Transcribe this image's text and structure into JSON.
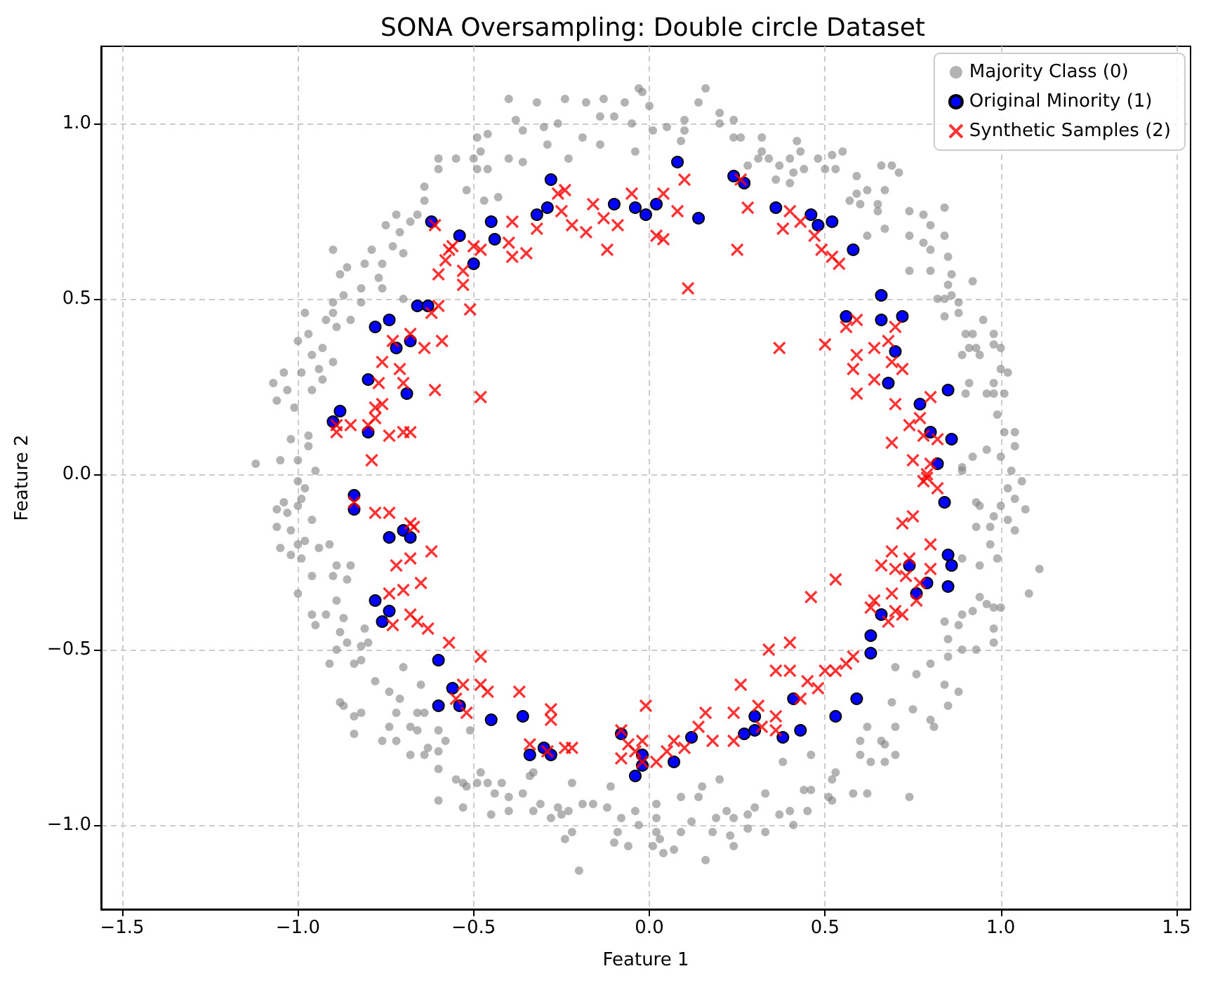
{
  "chart_data": {
    "type": "scatter",
    "title": "SONA Oversampling: Double circle Dataset",
    "xlabel": "Feature 1",
    "ylabel": "Feature 2",
    "xlim": [
      -1.56,
      1.54
    ],
    "ylim": [
      -1.24,
      1.22
    ],
    "xticks": [
      {
        "value": -1.5,
        "label": "−1.5"
      },
      {
        "value": -1.0,
        "label": "−1.0"
      },
      {
        "value": -0.5,
        "label": "−0.5"
      },
      {
        "value": 0,
        "label": "0.0"
      },
      0.5,
      {
        "value": 1.0,
        "label": "1.0"
      },
      1.5
    ],
    "yticks": [
      {
        "value": -1.0,
        "label": "−1.0"
      },
      {
        "value": -0.5,
        "label": "−0.5"
      },
      {
        "value": 0,
        "label": "0.0"
      },
      0.5,
      {
        "value": 1.0,
        "label": "1.0"
      }
    ],
    "grid": true,
    "legend": "top right",
    "series": [
      {
        "name": "Majority Class (0)",
        "color": "#808080",
        "marker": "circle",
        "x": [
          -0.4,
          -0.32,
          -0.24,
          -0.18,
          -0.13,
          -0.07,
          -0.03,
          -0.38,
          -0.36,
          -0.3,
          -0.26,
          -0.29,
          -0.19,
          -0.14,
          -0.1,
          -0.05,
          -0.14,
          -0.04,
          -0.23,
          -0.4,
          -0.36,
          -0.46,
          -0.49,
          -0.48,
          -0.5,
          -0.6,
          -0.55,
          -0.6,
          -0.49,
          -0.46,
          -0.64,
          -0.52,
          -0.47,
          -0.43,
          -0.64,
          -0.66,
          -0.72,
          -0.71,
          -0.75,
          -0.68,
          -0.73,
          -0.7,
          -0.79,
          -0.76,
          -0.81,
          -0.9,
          -0.86,
          -0.88,
          -0.77,
          -0.82,
          -0.87,
          -0.76,
          -0.7,
          -0.9,
          -0.82,
          -0.98,
          -0.9,
          -0.85,
          -0.92,
          -0.89,
          -0.97,
          -1.0,
          -0.93,
          -0.96,
          -0.9,
          -0.99,
          -0.94,
          -1.04,
          -1.07,
          -0.93,
          -0.96,
          -1.03,
          -1.06,
          -1.01,
          -1.02,
          -0.97,
          -0.97,
          -1.12,
          -1.05,
          -1.0,
          -0.95,
          -0.02,
          0.0,
          0.01,
          0.05,
          0.09,
          0.1,
          0.1,
          0.16,
          0.14,
          0.2,
          0.2,
          0.24,
          0.24,
          0.26,
          0.32,
          0.32,
          0.28,
          0.31,
          0.34,
          0.37,
          0.36,
          0.4,
          0.42,
          0.43,
          0.41,
          0.44,
          0.4,
          0.48,
          0.52,
          0.55,
          0.5,
          0.53,
          0.59,
          0.57,
          0.59,
          0.62,
          0.6,
          0.65,
          0.66,
          0.69,
          0.71,
          0.67,
          0.65,
          0.62,
          0.67,
          0.74,
          0.78,
          0.8,
          0.84,
          0.74,
          0.78,
          0.8,
          0.84,
          0.85,
          0.74,
          0.8,
          0.86,
          0.92,
          0.85,
          0.86,
          0.88,
          0.82,
          0.84,
          0.88,
          0.84,
          0.9,
          0.92,
          0.95,
          0.91,
          0.89,
          0.93,
          0.98,
          0.98,
          1.0,
          0.94,
          1.0,
          1.02,
          0.98,
          0.91,
          0.96,
          0.98,
          0.9,
          1.01,
          0.99,
          1.01,
          1.04,
          0.96,
          1.0,
          0.92,
          1.04,
          0.89,
          1.06,
          1.03,
          -1.0,
          -0.98,
          -1.06,
          -1.04,
          -1.03,
          -1.0,
          -0.99,
          -0.96,
          -1.06,
          -1.02,
          -1.05,
          -1.0,
          -0.98,
          -0.94,
          -0.91,
          -1.02,
          -0.99,
          -0.96,
          -0.9,
          -0.89,
          -0.85,
          -0.86,
          -1.0,
          -0.89,
          -0.96,
          -0.92,
          -0.95,
          -0.87,
          -0.88,
          -0.81,
          -0.89,
          -0.86,
          -0.91,
          -0.84,
          -0.82,
          -0.8,
          -0.82,
          -0.7,
          -0.78,
          -0.74,
          -0.65,
          -0.71,
          -0.88,
          -0.87,
          -0.82,
          -0.84,
          -0.72,
          -0.66,
          -0.64,
          -0.74,
          -0.84,
          -0.68,
          -0.66,
          -0.76,
          -0.72,
          -0.63,
          -0.6,
          -0.58,
          -0.6,
          -0.64,
          -0.6,
          -0.68,
          -0.51,
          -0.55,
          -0.53,
          -0.52,
          -0.49,
          -0.48,
          -0.46,
          -0.44,
          -0.42,
          -0.6,
          -0.53,
          -0.45,
          -0.4,
          -0.4,
          -0.36,
          -0.34,
          -0.33,
          -0.31,
          -0.33,
          -0.28,
          -0.26,
          -0.23,
          -0.25,
          -0.24,
          -0.22,
          -0.22,
          -0.19,
          -0.16,
          -0.12,
          -0.11,
          -0.08,
          -0.09,
          -0.1,
          -0.06,
          -0.04,
          -0.03,
          -0.2,
          0.89,
          0.93,
          0.94,
          1.0,
          1.04,
          1.07,
          1.02,
          0.98,
          1.02,
          0.93,
          0.97,
          1.04,
          0.97,
          0.89,
          0.94,
          0.99,
          1.11,
          1.08,
          0.94,
          0.96,
          0.98,
          1.0,
          0.89,
          0.92,
          0.88,
          0.84,
          0.85,
          0.85,
          0.89,
          0.93,
          0.98,
          0.98,
          0.8,
          0.76,
          0.84,
          0.88,
          0.85,
          0.8,
          0.81,
          0.75,
          0.7,
          0.69,
          0.7,
          0.62,
          0.67,
          0.7,
          0.66,
          0.6,
          0.6,
          0.63,
          0.67,
          0.38,
          0.46,
          0.53,
          0.52,
          0.44,
          0.46,
          0.51,
          0.52,
          0.58,
          0.62,
          0.74,
          0.33,
          0.3,
          0.28,
          0.37,
          0.4,
          0.45,
          0.41,
          0.28,
          0.33,
          0.24,
          0.22,
          0.23,
          0.24,
          0.19,
          0.18,
          0.15,
          0.14,
          0.2,
          0.12,
          0.09,
          0.09,
          0.04,
          0.07,
          0.03,
          0.02,
          0.02,
          0.02,
          0.16,
          0.01
        ],
        "values": [
          1.07,
          1.06,
          1.07,
          1.06,
          1.07,
          1.06,
          1.1,
          1.01,
          0.98,
          0.99,
          1.0,
          0.94,
          0.96,
          1.02,
          1.02,
          1.0,
          0.94,
          0.92,
          0.9,
          0.9,
          0.89,
          0.97,
          0.96,
          0.92,
          0.9,
          0.9,
          0.9,
          0.87,
          0.87,
          0.87,
          0.82,
          0.81,
          0.78,
          0.79,
          0.78,
          0.74,
          0.74,
          0.69,
          0.71,
          0.72,
          0.65,
          0.63,
          0.64,
          0.6,
          0.6,
          0.64,
          0.59,
          0.57,
          0.56,
          0.53,
          0.51,
          0.53,
          0.5,
          0.49,
          0.49,
          0.46,
          0.46,
          0.44,
          0.44,
          0.42,
          0.4,
          0.38,
          0.36,
          0.34,
          0.32,
          0.29,
          0.3,
          0.29,
          0.26,
          0.27,
          0.24,
          0.24,
          0.21,
          0.19,
          0.1,
          0.11,
          0.08,
          0.03,
          0.04,
          0.04,
          0.01,
          1.09,
          1.05,
          0.98,
          0.99,
          0.95,
          1.01,
          0.98,
          1.1,
          1.06,
          1.03,
          1.0,
          1.01,
          0.96,
          0.96,
          0.96,
          0.92,
          0.88,
          0.9,
          0.9,
          0.88,
          0.84,
          0.9,
          0.95,
          0.92,
          0.86,
          0.87,
          0.83,
          0.9,
          0.91,
          0.92,
          0.87,
          0.87,
          0.85,
          0.78,
          0.8,
          0.81,
          0.77,
          0.77,
          0.88,
          0.88,
          0.86,
          0.81,
          0.75,
          0.68,
          0.7,
          0.75,
          0.74,
          0.71,
          0.76,
          0.68,
          0.66,
          0.64,
          0.68,
          0.62,
          0.58,
          0.58,
          0.57,
          0.55,
          0.54,
          0.51,
          0.49,
          0.5,
          0.5,
          0.46,
          0.45,
          0.4,
          0.4,
          0.44,
          0.36,
          0.34,
          0.36,
          0.4,
          0.37,
          0.36,
          0.34,
          0.3,
          0.29,
          0.26,
          0.26,
          0.23,
          0.23,
          0.23,
          0.23,
          0.17,
          0.12,
          0.12,
          0.07,
          0.05,
          0.05,
          0.08,
          0.02,
          -0.02,
          0.01,
          -0.02,
          -0.04,
          -0.1,
          -0.08,
          -0.11,
          -0.09,
          -0.07,
          -0.13,
          -0.15,
          -0.16,
          -0.21,
          -0.2,
          -0.19,
          -0.21,
          -0.2,
          -0.23,
          -0.24,
          -0.29,
          -0.29,
          -0.26,
          -0.26,
          -0.3,
          -0.34,
          -0.36,
          -0.4,
          -0.4,
          -0.43,
          -0.41,
          -0.45,
          -0.44,
          -0.5,
          -0.48,
          -0.54,
          -0.54,
          -0.49,
          -0.48,
          -0.53,
          -0.55,
          -0.59,
          -0.62,
          -0.6,
          -0.64,
          -0.65,
          -0.66,
          -0.68,
          -0.69,
          -0.68,
          -0.68,
          -0.68,
          -0.72,
          -0.74,
          -0.72,
          -0.73,
          -0.76,
          -0.76,
          -0.78,
          -0.73,
          -0.76,
          -0.79,
          -0.8,
          -0.84,
          -0.8,
          -0.73,
          -0.87,
          -0.88,
          -0.89,
          -0.88,
          -0.85,
          -0.88,
          -0.91,
          -0.88,
          -0.93,
          -0.95,
          -0.97,
          -0.92,
          -0.96,
          -0.91,
          -0.86,
          -0.85,
          -0.94,
          -0.96,
          -0.98,
          -0.95,
          -0.96,
          -0.97,
          -1.04,
          -1.02,
          -0.88,
          -0.94,
          -0.94,
          -0.95,
          -0.89,
          -0.98,
          -1.02,
          -1.05,
          -1.06,
          -0.96,
          -1.0,
          -1.13,
          0.01,
          -0.08,
          -0.09,
          -0.09,
          -0.07,
          -0.1,
          -0.04,
          -0.12,
          -0.13,
          -0.15,
          -0.15,
          -0.16,
          -0.2,
          -0.24,
          -0.26,
          -0.24,
          -0.27,
          -0.34,
          -0.35,
          -0.37,
          -0.38,
          -0.38,
          -0.4,
          -0.39,
          -0.43,
          -0.42,
          -0.47,
          -0.52,
          -0.5,
          -0.5,
          -0.44,
          -0.48,
          -0.54,
          -0.57,
          -0.6,
          -0.62,
          -0.66,
          -0.7,
          -0.72,
          -0.67,
          -0.55,
          -0.65,
          -0.72,
          -0.72,
          -0.77,
          -0.8,
          -0.76,
          -0.76,
          -0.8,
          -0.82,
          -0.82,
          -0.82,
          -0.8,
          -0.85,
          -0.87,
          -0.9,
          -0.9,
          -0.92,
          -0.93,
          -0.91,
          -0.91,
          -0.92,
          -0.91,
          -0.95,
          -0.97,
          -0.97,
          -0.96,
          -0.96,
          -1.0,
          -1.01,
          -1.02,
          -0.98,
          -0.96,
          -1.03,
          -1.06,
          -0.98,
          -1.02,
          -0.89,
          -0.92,
          -0.87,
          -0.99,
          -0.92,
          -1.02,
          -1.08,
          -1.07,
          -1.04,
          -0.98,
          -0.94,
          -1.02,
          -1.1,
          -1.06
        ]
      },
      {
        "name": "Original Minority (1)",
        "color": "#0000ff",
        "marker": "circle",
        "x": [
          -0.62,
          -0.54,
          -0.45,
          -0.44,
          -0.5,
          -0.66,
          -0.63,
          -0.78,
          -0.74,
          -0.72,
          -0.68,
          -0.8,
          -0.69,
          -0.9,
          -0.88,
          -0.8,
          -0.28,
          -0.29,
          -0.32,
          -0.1,
          -0.04,
          -0.01,
          0.08,
          0.24,
          0.27,
          0.14,
          0.02,
          0.36,
          0.46,
          0.52,
          0.48,
          0.58,
          0.66,
          0.56,
          0.66,
          0.72,
          0.7,
          0.68,
          0.85,
          0.77,
          0.8,
          0.86,
          0.82,
          -0.84,
          -0.84,
          -0.74,
          -0.7,
          -0.68,
          -0.78,
          -0.74,
          -0.76,
          -0.6,
          -0.56,
          -0.6,
          -0.54,
          -0.45,
          -0.36,
          -0.34,
          -0.3,
          -0.28,
          -0.08,
          -0.04,
          -0.02,
          0.84,
          0.85,
          0.86,
          0.85,
          0.74,
          0.79,
          0.76,
          0.66,
          0.63,
          0.63,
          0.59,
          0.53,
          0.43,
          0.41,
          0.38,
          0.3,
          0.27,
          0.3,
          0.12,
          0.07,
          -0.02
        ],
        "values": [
          0.72,
          0.68,
          0.72,
          0.67,
          0.6,
          0.48,
          0.48,
          0.42,
          0.44,
          0.36,
          0.38,
          0.27,
          0.23,
          0.15,
          0.18,
          0.12,
          0.84,
          0.76,
          0.74,
          0.77,
          0.76,
          0.74,
          0.89,
          0.85,
          0.83,
          0.73,
          0.77,
          0.76,
          0.74,
          0.72,
          0.71,
          0.64,
          0.51,
          0.45,
          0.44,
          0.45,
          0.35,
          0.26,
          0.24,
          0.2,
          0.12,
          0.1,
          0.03,
          -0.06,
          -0.1,
          -0.18,
          -0.16,
          -0.18,
          -0.36,
          -0.39,
          -0.42,
          -0.53,
          -0.61,
          -0.66,
          -0.66,
          -0.7,
          -0.69,
          -0.8,
          -0.78,
          -0.8,
          -0.74,
          -0.86,
          -0.83,
          -0.08,
          -0.23,
          -0.26,
          -0.32,
          -0.26,
          -0.31,
          -0.34,
          -0.4,
          -0.46,
          -0.51,
          -0.64,
          -0.69,
          -0.73,
          -0.64,
          -0.75,
          -0.69,
          -0.74,
          -0.73,
          -0.75,
          -0.82,
          -0.8
        ]
      },
      {
        "name": "Synthetic Samples (2)",
        "color": "#ff0000",
        "marker": "cross",
        "x": [
          -0.61,
          -0.57,
          -0.56,
          -0.58,
          -0.6,
          -0.53,
          -0.53,
          -0.51,
          -0.5,
          -0.48,
          -0.4,
          -0.39,
          -0.39,
          -0.35,
          -0.32,
          -0.26,
          -0.24,
          -0.25,
          -0.22,
          -0.18,
          -0.16,
          -0.13,
          -0.09,
          -0.12,
          -0.05,
          -0.6,
          -0.62,
          -0.59,
          -0.64,
          -0.68,
          -0.73,
          -0.76,
          -0.71,
          -0.7,
          -0.77,
          -0.61,
          -0.48,
          -0.78,
          -0.76,
          -0.78,
          -0.8,
          -0.85,
          -0.89,
          -0.74,
          -0.7,
          -0.68,
          -0.79,
          -0.89,
          0.1,
          0.04,
          0.08,
          0.02,
          0.04,
          0.11,
          0.25,
          0.28,
          0.26,
          0.37,
          0.5,
          0.4,
          0.38,
          0.43,
          0.47,
          0.49,
          0.52,
          0.54,
          0.56,
          0.59,
          0.59,
          0.58,
          0.59,
          0.64,
          0.64,
          0.68,
          0.69,
          0.72,
          0.7,
          0.7,
          0.74,
          0.77,
          0.8,
          0.69,
          0.75,
          0.78,
          0.82,
          0.8,
          0.79,
          -0.84,
          -0.78,
          -0.74,
          -0.68,
          -0.67,
          -0.62,
          -0.68,
          -0.72,
          -0.65,
          -0.7,
          -0.74,
          -0.73,
          -0.66,
          -0.63,
          -0.68,
          -0.57,
          -0.48,
          -0.53,
          -0.48,
          -0.46,
          -0.37,
          -0.55,
          -0.52,
          -0.28,
          -0.28,
          -0.34,
          -0.29,
          -0.24,
          -0.22,
          -0.08,
          -0.06,
          -0.04,
          -0.01,
          -0.08,
          -0.02,
          0.79,
          0.78,
          0.82,
          0.75,
          0.72,
          0.8,
          0.74,
          0.69,
          0.66,
          0.7,
          0.73,
          0.77,
          0.8,
          0.76,
          0.69,
          0.64,
          0.63,
          0.7,
          0.72,
          0.68,
          0.53,
          0.46,
          0.58,
          0.56,
          0.53,
          0.5,
          0.48,
          0.45,
          0.43,
          0.4,
          0.34,
          0.36,
          0.4,
          0.26,
          0.31,
          0.36,
          0.36,
          0.32,
          0.24,
          0.24,
          0.16,
          0.14,
          0.18,
          0.1,
          0.07,
          0.05,
          0.02,
          -0.02
        ],
        "values": [
          0.71,
          0.64,
          0.65,
          0.61,
          0.57,
          0.58,
          0.54,
          0.47,
          0.65,
          0.64,
          0.66,
          0.72,
          0.62,
          0.63,
          0.7,
          0.8,
          0.81,
          0.75,
          0.71,
          0.69,
          0.77,
          0.73,
          0.71,
          0.64,
          0.8,
          0.48,
          0.46,
          0.38,
          0.36,
          0.4,
          0.38,
          0.32,
          0.3,
          0.26,
          0.26,
          0.24,
          0.22,
          0.19,
          0.2,
          0.16,
          0.14,
          0.14,
          0.12,
          0.11,
          0.12,
          0.12,
          0.04,
          0.14,
          0.84,
          0.8,
          0.75,
          0.68,
          0.67,
          0.53,
          0.64,
          0.76,
          0.84,
          0.36,
          0.37,
          0.75,
          0.7,
          0.72,
          0.68,
          0.64,
          0.62,
          0.6,
          0.42,
          0.44,
          0.34,
          0.3,
          0.23,
          0.36,
          0.27,
          0.38,
          0.32,
          0.3,
          0.42,
          0.2,
          0.14,
          0.16,
          0.22,
          0.09,
          0.04,
          0.11,
          0.1,
          0.03,
          -0.01,
          -0.08,
          -0.11,
          -0.11,
          -0.14,
          -0.15,
          -0.22,
          -0.24,
          -0.26,
          -0.31,
          -0.33,
          -0.34,
          -0.43,
          -0.42,
          -0.44,
          -0.4,
          -0.48,
          -0.52,
          -0.6,
          -0.6,
          -0.62,
          -0.62,
          -0.64,
          -0.68,
          -0.67,
          -0.7,
          -0.77,
          -0.79,
          -0.78,
          -0.78,
          -0.73,
          -0.77,
          -0.79,
          -0.66,
          -0.81,
          -0.82,
          0.0,
          -0.02,
          -0.04,
          -0.12,
          -0.14,
          -0.2,
          -0.24,
          -0.22,
          -0.26,
          -0.27,
          -0.29,
          -0.31,
          -0.27,
          -0.36,
          -0.34,
          -0.36,
          -0.38,
          -0.39,
          -0.4,
          -0.42,
          -0.3,
          -0.35,
          -0.52,
          -0.54,
          -0.56,
          -0.56,
          -0.61,
          -0.59,
          -0.64,
          -0.48,
          -0.5,
          -0.56,
          -0.56,
          -0.6,
          -0.66,
          -0.69,
          -0.73,
          -0.72,
          -0.68,
          -0.76,
          -0.68,
          -0.72,
          -0.76,
          -0.78,
          -0.76,
          -0.79,
          -0.82,
          -0.76
        ]
      }
    ]
  }
}
